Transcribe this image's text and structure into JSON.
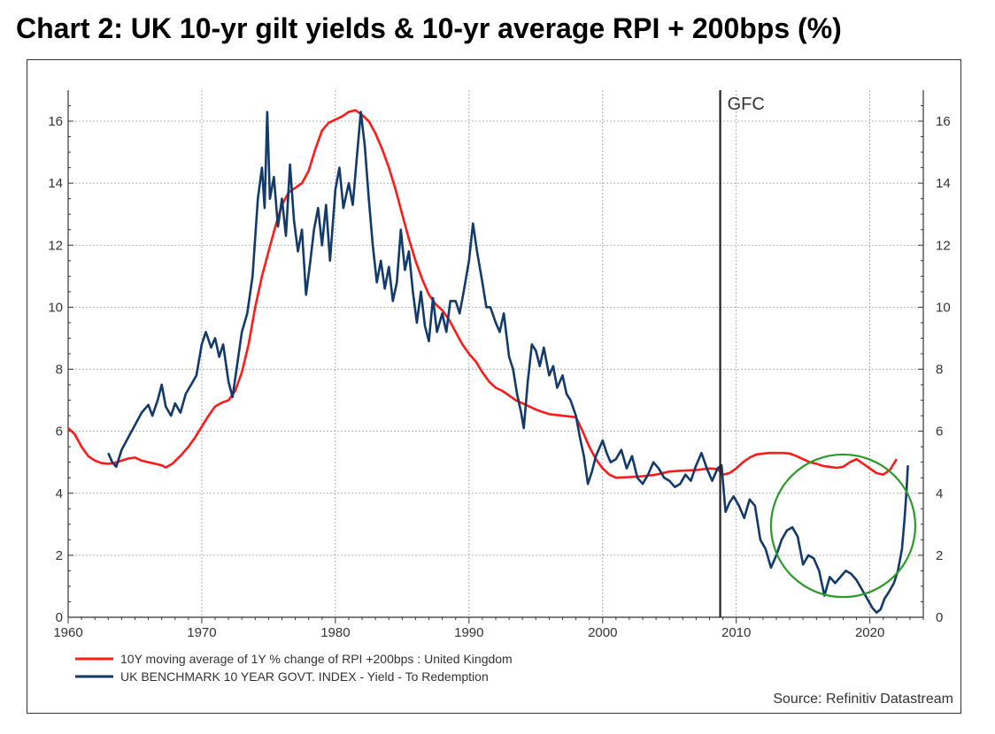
{
  "chart_data": {
    "type": "line",
    "title": "Chart 2: UK 10-yr gilt yields & 10-yr average RPI + 200bps (%)",
    "xlabel": "",
    "ylabel": "",
    "xlim": [
      1960,
      2024
    ],
    "ylim": [
      0,
      17
    ],
    "x_ticks": [
      1960,
      1970,
      1980,
      1990,
      2000,
      2010,
      2020
    ],
    "x_tick_labels": [
      "1960",
      "1970",
      "1980",
      "1990",
      "2000",
      "2010",
      "2020"
    ],
    "y_ticks": [
      0,
      2,
      4,
      6,
      8,
      10,
      12,
      14,
      16
    ],
    "y_tick_labels": [
      "0",
      "2",
      "4",
      "6",
      "8",
      "10",
      "12",
      "14",
      "16"
    ],
    "grid": true,
    "legend_position": "bottom-left",
    "series": [
      {
        "name": "10Y moving average of 1Y % change of RPI +200bps : United Kingdom",
        "color": "#ff1a1a",
        "points": [
          [
            1960.0,
            6.1
          ],
          [
            1960.5,
            5.9
          ],
          [
            1961.0,
            5.5
          ],
          [
            1961.5,
            5.2
          ],
          [
            1962.0,
            5.05
          ],
          [
            1962.5,
            4.97
          ],
          [
            1963.0,
            4.95
          ],
          [
            1963.5,
            4.98
          ],
          [
            1964.0,
            5.05
          ],
          [
            1964.5,
            5.12
          ],
          [
            1965.0,
            5.15
          ],
          [
            1965.5,
            5.05
          ],
          [
            1966.0,
            5.0
          ],
          [
            1966.5,
            4.95
          ],
          [
            1967.0,
            4.9
          ],
          [
            1967.3,
            4.83
          ],
          [
            1967.8,
            4.95
          ],
          [
            1968.5,
            5.25
          ],
          [
            1969.0,
            5.5
          ],
          [
            1969.5,
            5.8
          ],
          [
            1970.0,
            6.15
          ],
          [
            1970.5,
            6.5
          ],
          [
            1971.0,
            6.8
          ],
          [
            1971.5,
            6.92
          ],
          [
            1972.0,
            7.0
          ],
          [
            1972.5,
            7.3
          ],
          [
            1973.0,
            7.9
          ],
          [
            1973.5,
            8.8
          ],
          [
            1974.0,
            10.0
          ],
          [
            1974.5,
            11.0
          ],
          [
            1975.0,
            11.8
          ],
          [
            1975.5,
            12.6
          ],
          [
            1976.0,
            13.3
          ],
          [
            1976.5,
            13.7
          ],
          [
            1977.0,
            13.85
          ],
          [
            1977.5,
            14.0
          ],
          [
            1978.0,
            14.4
          ],
          [
            1978.5,
            15.1
          ],
          [
            1979.0,
            15.7
          ],
          [
            1979.5,
            15.95
          ],
          [
            1980.0,
            16.05
          ],
          [
            1980.5,
            16.15
          ],
          [
            1981.0,
            16.3
          ],
          [
            1981.5,
            16.35
          ],
          [
            1982.0,
            16.2
          ],
          [
            1982.5,
            16.0
          ],
          [
            1983.0,
            15.6
          ],
          [
            1983.5,
            15.1
          ],
          [
            1984.0,
            14.5
          ],
          [
            1984.5,
            13.8
          ],
          [
            1985.0,
            13.0
          ],
          [
            1985.5,
            12.2
          ],
          [
            1986.0,
            11.5
          ],
          [
            1986.5,
            10.9
          ],
          [
            1987.0,
            10.4
          ],
          [
            1987.5,
            10.1
          ],
          [
            1988.0,
            9.9
          ],
          [
            1988.5,
            9.6
          ],
          [
            1989.0,
            9.2
          ],
          [
            1989.5,
            8.8
          ],
          [
            1990.0,
            8.5
          ],
          [
            1990.5,
            8.25
          ],
          [
            1991.0,
            7.9
          ],
          [
            1991.5,
            7.6
          ],
          [
            1992.0,
            7.4
          ],
          [
            1992.5,
            7.3
          ],
          [
            1993.0,
            7.15
          ],
          [
            1993.5,
            7.0
          ],
          [
            1994.0,
            6.9
          ],
          [
            1994.5,
            6.8
          ],
          [
            1995.0,
            6.7
          ],
          [
            1995.5,
            6.62
          ],
          [
            1996.0,
            6.55
          ],
          [
            1997.0,
            6.5
          ],
          [
            1998.0,
            6.45
          ],
          [
            1998.5,
            6.0
          ],
          [
            1999.0,
            5.5
          ],
          [
            1999.5,
            5.1
          ],
          [
            2000.0,
            4.8
          ],
          [
            2000.5,
            4.6
          ],
          [
            2001.0,
            4.5
          ],
          [
            2002.0,
            4.52
          ],
          [
            2003.0,
            4.55
          ],
          [
            2004.0,
            4.6
          ],
          [
            2005.0,
            4.7
          ],
          [
            2006.0,
            4.73
          ],
          [
            2007.0,
            4.75
          ],
          [
            2008.0,
            4.8
          ],
          [
            2008.6,
            4.78
          ],
          [
            2009.0,
            4.6
          ],
          [
            2009.5,
            4.65
          ],
          [
            2010.0,
            4.8
          ],
          [
            2010.5,
            5.0
          ],
          [
            2011.0,
            5.15
          ],
          [
            2011.5,
            5.25
          ],
          [
            2012.0,
            5.28
          ],
          [
            2012.5,
            5.3
          ],
          [
            2013.0,
            5.3
          ],
          [
            2013.5,
            5.3
          ],
          [
            2014.0,
            5.28
          ],
          [
            2014.5,
            5.2
          ],
          [
            2015.0,
            5.1
          ],
          [
            2015.5,
            5.0
          ],
          [
            2016.0,
            4.95
          ],
          [
            2016.5,
            4.88
          ],
          [
            2017.0,
            4.85
          ],
          [
            2017.5,
            4.82
          ],
          [
            2018.0,
            4.85
          ],
          [
            2018.5,
            5.0
          ],
          [
            2019.0,
            5.1
          ],
          [
            2019.5,
            4.95
          ],
          [
            2020.0,
            4.8
          ],
          [
            2020.5,
            4.65
          ],
          [
            2021.0,
            4.6
          ],
          [
            2021.5,
            4.75
          ],
          [
            2022.0,
            5.1
          ]
        ]
      },
      {
        "name": "UK BENCHMARK 10 YEAR GOVT. INDEX - Yield - To Redemption",
        "color": "#123a6b",
        "points": [
          [
            1963.0,
            5.3
          ],
          [
            1963.3,
            5.0
          ],
          [
            1963.6,
            4.85
          ],
          [
            1964.0,
            5.4
          ],
          [
            1964.5,
            5.8
          ],
          [
            1965.0,
            6.2
          ],
          [
            1965.5,
            6.6
          ],
          [
            1966.0,
            6.85
          ],
          [
            1966.3,
            6.5
          ],
          [
            1966.7,
            7.0
          ],
          [
            1967.0,
            7.5
          ],
          [
            1967.3,
            6.8
          ],
          [
            1967.7,
            6.5
          ],
          [
            1968.0,
            6.9
          ],
          [
            1968.4,
            6.6
          ],
          [
            1968.8,
            7.2
          ],
          [
            1969.2,
            7.5
          ],
          [
            1969.6,
            7.8
          ],
          [
            1970.0,
            8.8
          ],
          [
            1970.3,
            9.2
          ],
          [
            1970.7,
            8.7
          ],
          [
            1971.0,
            9.0
          ],
          [
            1971.3,
            8.4
          ],
          [
            1971.6,
            8.8
          ],
          [
            1972.0,
            7.6
          ],
          [
            1972.3,
            7.1
          ],
          [
            1972.6,
            8.0
          ],
          [
            1973.0,
            9.2
          ],
          [
            1973.4,
            9.8
          ],
          [
            1973.8,
            11.0
          ],
          [
            1974.2,
            13.5
          ],
          [
            1974.5,
            14.5
          ],
          [
            1974.7,
            13.2
          ],
          [
            1974.9,
            16.3
          ],
          [
            1975.1,
            13.5
          ],
          [
            1975.4,
            14.2
          ],
          [
            1975.7,
            12.6
          ],
          [
            1976.0,
            13.5
          ],
          [
            1976.3,
            12.3
          ],
          [
            1976.6,
            14.6
          ],
          [
            1976.9,
            12.8
          ],
          [
            1977.2,
            11.8
          ],
          [
            1977.5,
            12.5
          ],
          [
            1977.8,
            10.4
          ],
          [
            1978.1,
            11.4
          ],
          [
            1978.4,
            12.5
          ],
          [
            1978.7,
            13.2
          ],
          [
            1979.0,
            12.0
          ],
          [
            1979.3,
            13.3
          ],
          [
            1979.6,
            11.5
          ],
          [
            1980.0,
            13.8
          ],
          [
            1980.3,
            14.5
          ],
          [
            1980.6,
            13.2
          ],
          [
            1981.0,
            14.0
          ],
          [
            1981.3,
            13.3
          ],
          [
            1981.6,
            14.8
          ],
          [
            1981.9,
            16.3
          ],
          [
            1982.2,
            15.2
          ],
          [
            1982.5,
            13.5
          ],
          [
            1982.8,
            12.0
          ],
          [
            1983.1,
            10.8
          ],
          [
            1983.4,
            11.5
          ],
          [
            1983.7,
            10.6
          ],
          [
            1984.0,
            11.3
          ],
          [
            1984.3,
            10.2
          ],
          [
            1984.6,
            10.8
          ],
          [
            1984.9,
            12.5
          ],
          [
            1985.2,
            11.2
          ],
          [
            1985.5,
            11.8
          ],
          [
            1985.8,
            10.5
          ],
          [
            1986.1,
            9.5
          ],
          [
            1986.4,
            10.5
          ],
          [
            1986.7,
            9.4
          ],
          [
            1987.0,
            8.9
          ],
          [
            1987.3,
            10.3
          ],
          [
            1987.6,
            9.2
          ],
          [
            1988.0,
            9.8
          ],
          [
            1988.3,
            9.2
          ],
          [
            1988.6,
            10.2
          ],
          [
            1989.0,
            10.2
          ],
          [
            1989.3,
            9.8
          ],
          [
            1989.6,
            10.5
          ],
          [
            1990.0,
            11.5
          ],
          [
            1990.3,
            12.7
          ],
          [
            1990.6,
            11.8
          ],
          [
            1991.0,
            10.8
          ],
          [
            1991.3,
            10.0
          ],
          [
            1991.6,
            10.0
          ],
          [
            1992.0,
            9.5
          ],
          [
            1992.3,
            9.2
          ],
          [
            1992.6,
            9.8
          ],
          [
            1993.0,
            8.4
          ],
          [
            1993.3,
            8.0
          ],
          [
            1993.6,
            7.2
          ],
          [
            1993.9,
            6.6
          ],
          [
            1994.1,
            6.1
          ],
          [
            1994.4,
            7.6
          ],
          [
            1994.7,
            8.8
          ],
          [
            1995.0,
            8.6
          ],
          [
            1995.3,
            8.1
          ],
          [
            1995.6,
            8.7
          ],
          [
            1996.0,
            7.8
          ],
          [
            1996.3,
            8.1
          ],
          [
            1996.6,
            7.4
          ],
          [
            1997.0,
            7.8
          ],
          [
            1997.3,
            7.2
          ],
          [
            1997.6,
            7.0
          ],
          [
            1998.0,
            6.5
          ],
          [
            1998.3,
            5.8
          ],
          [
            1998.6,
            5.2
          ],
          [
            1998.9,
            4.3
          ],
          [
            1999.2,
            4.7
          ],
          [
            1999.5,
            5.2
          ],
          [
            2000.0,
            5.7
          ],
          [
            2000.3,
            5.3
          ],
          [
            2000.6,
            5.0
          ],
          [
            2001.0,
            5.1
          ],
          [
            2001.4,
            5.4
          ],
          [
            2001.8,
            4.8
          ],
          [
            2002.2,
            5.2
          ],
          [
            2002.6,
            4.5
          ],
          [
            2003.0,
            4.3
          ],
          [
            2003.4,
            4.6
          ],
          [
            2003.8,
            5.0
          ],
          [
            2004.2,
            4.8
          ],
          [
            2004.6,
            4.5
          ],
          [
            2005.0,
            4.4
          ],
          [
            2005.4,
            4.2
          ],
          [
            2005.8,
            4.3
          ],
          [
            2006.2,
            4.6
          ],
          [
            2006.6,
            4.4
          ],
          [
            2007.0,
            4.9
          ],
          [
            2007.4,
            5.3
          ],
          [
            2007.8,
            4.8
          ],
          [
            2008.2,
            4.4
          ],
          [
            2008.6,
            4.8
          ],
          [
            2008.9,
            4.9
          ],
          [
            2009.2,
            3.4
          ],
          [
            2009.5,
            3.7
          ],
          [
            2009.8,
            3.9
          ],
          [
            2010.2,
            3.6
          ],
          [
            2010.6,
            3.2
          ],
          [
            2011.0,
            3.8
          ],
          [
            2011.4,
            3.6
          ],
          [
            2011.8,
            2.5
          ],
          [
            2012.2,
            2.2
          ],
          [
            2012.6,
            1.6
          ],
          [
            2013.0,
            2.0
          ],
          [
            2013.4,
            2.5
          ],
          [
            2013.8,
            2.8
          ],
          [
            2014.2,
            2.9
          ],
          [
            2014.6,
            2.6
          ],
          [
            2015.0,
            1.7
          ],
          [
            2015.4,
            2.0
          ],
          [
            2015.8,
            1.9
          ],
          [
            2016.2,
            1.5
          ],
          [
            2016.6,
            0.7
          ],
          [
            2017.0,
            1.3
          ],
          [
            2017.4,
            1.1
          ],
          [
            2017.8,
            1.3
          ],
          [
            2018.2,
            1.5
          ],
          [
            2018.6,
            1.4
          ],
          [
            2019.0,
            1.2
          ],
          [
            2019.4,
            0.9
          ],
          [
            2019.8,
            0.6
          ],
          [
            2020.2,
            0.3
          ],
          [
            2020.5,
            0.15
          ],
          [
            2020.8,
            0.25
          ],
          [
            2021.1,
            0.6
          ],
          [
            2021.4,
            0.8
          ],
          [
            2021.8,
            1.1
          ],
          [
            2022.1,
            1.5
          ],
          [
            2022.4,
            2.2
          ],
          [
            2022.6,
            3.2
          ],
          [
            2022.75,
            4.1
          ],
          [
            2022.85,
            4.9
          ]
        ]
      }
    ],
    "annotations": {
      "gfc_label": "GFC",
      "gfc_year": 2008.8,
      "circle_center": [
        2018,
        2.95
      ],
      "circle_radius_years": 5.4,
      "circle_radius_value": 2.3,
      "circle_color": "#2a9a2a"
    },
    "source": "Source: Refinitiv Datastream"
  }
}
